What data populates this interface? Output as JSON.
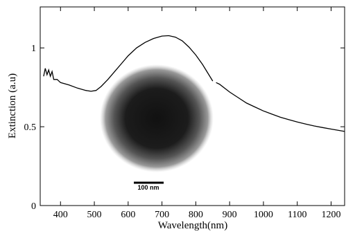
{
  "chart_data": {
    "type": "line",
    "x_label": "Wavelength(nm)",
    "y_label": "Extinction (a.u)",
    "x": [
      350,
      355,
      360,
      365,
      370,
      375,
      380,
      390,
      400,
      425,
      450,
      475,
      490,
      505,
      520,
      540,
      560,
      580,
      600,
      625,
      650,
      675,
      700,
      720,
      740,
      760,
      780,
      800,
      820,
      840,
      850,
      855,
      860,
      870,
      900,
      925,
      950,
      975,
      1000,
      1025,
      1050,
      1075,
      1100,
      1125,
      1150,
      1175,
      1200,
      1240
    ],
    "series": [
      {
        "color": "#000000",
        "values": [
          0.82,
          0.87,
          0.83,
          0.86,
          0.82,
          0.85,
          0.8,
          0.8,
          0.78,
          0.765,
          0.745,
          0.73,
          0.725,
          0.73,
          0.755,
          0.8,
          0.85,
          0.9,
          0.95,
          1.0,
          1.035,
          1.06,
          1.075,
          1.078,
          1.068,
          1.045,
          1.005,
          0.955,
          0.895,
          0.825,
          0.79,
          null,
          0.78,
          0.77,
          0.72,
          0.685,
          0.65,
          0.625,
          0.6,
          0.58,
          0.56,
          0.545,
          0.53,
          0.517,
          0.505,
          0.495,
          0.485,
          0.47
        ]
      }
    ],
    "xlim": [
      340,
      1240
    ],
    "ylim": [
      0,
      1.26
    ],
    "xticks": [
      400,
      500,
      600,
      700,
      800,
      900,
      1000,
      1100,
      1200
    ],
    "yticks": [
      0,
      0.5,
      1
    ],
    "inset_scale_label": "100 nm"
  }
}
